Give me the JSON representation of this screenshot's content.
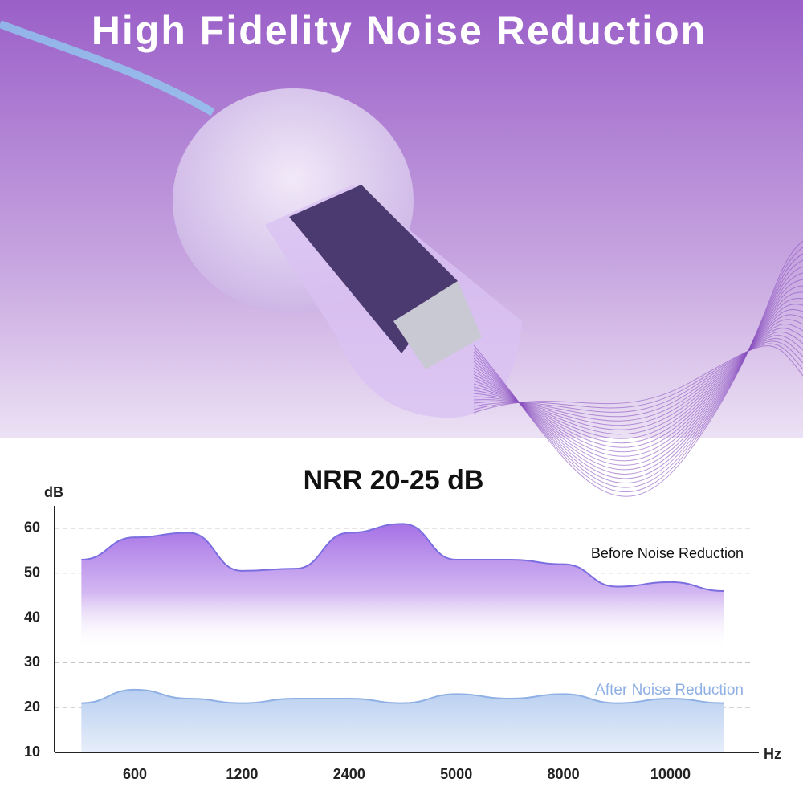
{
  "header": {
    "title": "High Fidelity Noise Reduction"
  },
  "chart_data": {
    "type": "area",
    "title": "NRR 20-25 dB",
    "y_label": "dB",
    "x_label": "Hz",
    "categories": [
      null,
      "600",
      null,
      "1200",
      null,
      "2400",
      null,
      "5000",
      null,
      "8000",
      null,
      "10000",
      null
    ],
    "series": [
      {
        "name": "Before Noise Reduction",
        "color": "#7b6ee0",
        "values": [
          53,
          58,
          59,
          50.5,
          51,
          59,
          61,
          53,
          53,
          52,
          47,
          48,
          46
        ]
      },
      {
        "name": "After Noise Reduction",
        "color": "#8fb0e4",
        "values": [
          21,
          24,
          22,
          21,
          22,
          22,
          21,
          23,
          22,
          23,
          21,
          22,
          21
        ]
      }
    ],
    "ylim": [
      10,
      65
    ],
    "yticks": [
      10,
      20,
      30,
      40,
      50,
      60
    ],
    "grid": true
  }
}
